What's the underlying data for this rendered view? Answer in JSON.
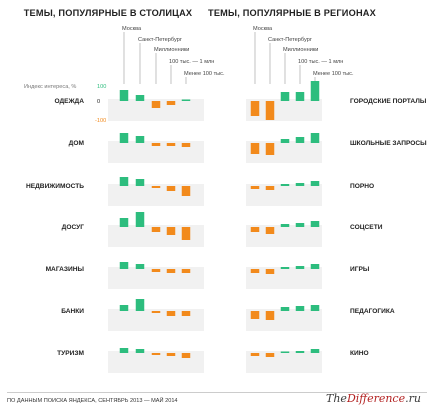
{
  "titles": {
    "left": "ТЕМЫ, ПОПУЛЯРНЫЕ В СТОЛИЦАХ",
    "right": "ТЕМЫ, ПОПУЛЯРНЫЕ В РЕГИОНАХ"
  },
  "city_labels": [
    "Москва",
    "Санкт-Петербург",
    "Миллионники",
    "100 тыс. — 1 млн",
    "Менее 100 тыс."
  ],
  "scale": {
    "label": "Индекс интереса, %",
    "top": "100",
    "mid": "0",
    "bottom": "-100"
  },
  "colors": {
    "positive": "#2dbd7e",
    "negative": "#f28a1c",
    "band": "#f1f1f1"
  },
  "footer": {
    "source": "ПО ДАННЫМ ПОИСКА ЯНДЕКСА, СЕНТЯБРЬ 2013 — МАЙ 2014",
    "brand_prefix": "The",
    "brand_mid": "Difference",
    "brand_suffix": ".ru"
  },
  "chart_data": [
    {
      "type": "bar",
      "title": "ТЕМЫ, ПОПУЛЯРНЫЕ В СТОЛИЦАХ",
      "categories": [
        "Москва",
        "Санкт-Петербург",
        "Миллионники",
        "100 тыс. — 1 млн",
        "Менее 100 тыс."
      ],
      "ylim": [
        -100,
        100
      ],
      "ylabel": "Индекс интереса, %",
      "series": [
        {
          "name": "ОДЕЖДА",
          "values": [
            55,
            30,
            -35,
            -20,
            5
          ]
        },
        {
          "name": "ДОМ",
          "values": [
            50,
            35,
            -15,
            -15,
            -20
          ]
        },
        {
          "name": "НЕДВИЖИМОСТЬ",
          "values": [
            45,
            35,
            -10,
            -25,
            -50
          ]
        },
        {
          "name": "ДОСУГ",
          "values": [
            45,
            75,
            -25,
            -40,
            -65
          ]
        },
        {
          "name": "МАГАЗИНЫ",
          "values": [
            35,
            25,
            -15,
            -20,
            -20
          ]
        },
        {
          "name": "БАНКИ",
          "values": [
            30,
            60,
            -10,
            -25,
            -25
          ]
        },
        {
          "name": "ТУРИЗМ",
          "values": [
            25,
            20,
            -10,
            -15,
            -25
          ]
        }
      ]
    },
    {
      "type": "bar",
      "title": "ТЕМЫ, ПОПУЛЯРНЫЕ В РЕГИОНАХ",
      "categories": [
        "Москва",
        "Санкт-Петербург",
        "Миллионники",
        "100 тыс. — 1 млн",
        "Менее 100 тыс."
      ],
      "ylim": [
        -100,
        100
      ],
      "series": [
        {
          "name": "ГОРОДСКИЕ ПОРТАЛЫ",
          "values": [
            -75,
            -95,
            45,
            45,
            100
          ]
        },
        {
          "name": "ШКОЛЬНЫЕ ЗАПРОСЫ",
          "values": [
            -55,
            -60,
            20,
            30,
            50
          ]
        },
        {
          "name": "ПОРНО",
          "values": [
            -15,
            -20,
            10,
            15,
            25
          ]
        },
        {
          "name": "СОЦСЕТИ",
          "values": [
            -25,
            -35,
            15,
            20,
            30
          ]
        },
        {
          "name": "ИГРЫ",
          "values": [
            -20,
            -25,
            10,
            15,
            25
          ]
        },
        {
          "name": "ПЕДАГОГИКА",
          "values": [
            -40,
            -45,
            20,
            25,
            30
          ]
        },
        {
          "name": "КИНО",
          "values": [
            -15,
            -20,
            5,
            10,
            20
          ]
        }
      ]
    }
  ]
}
